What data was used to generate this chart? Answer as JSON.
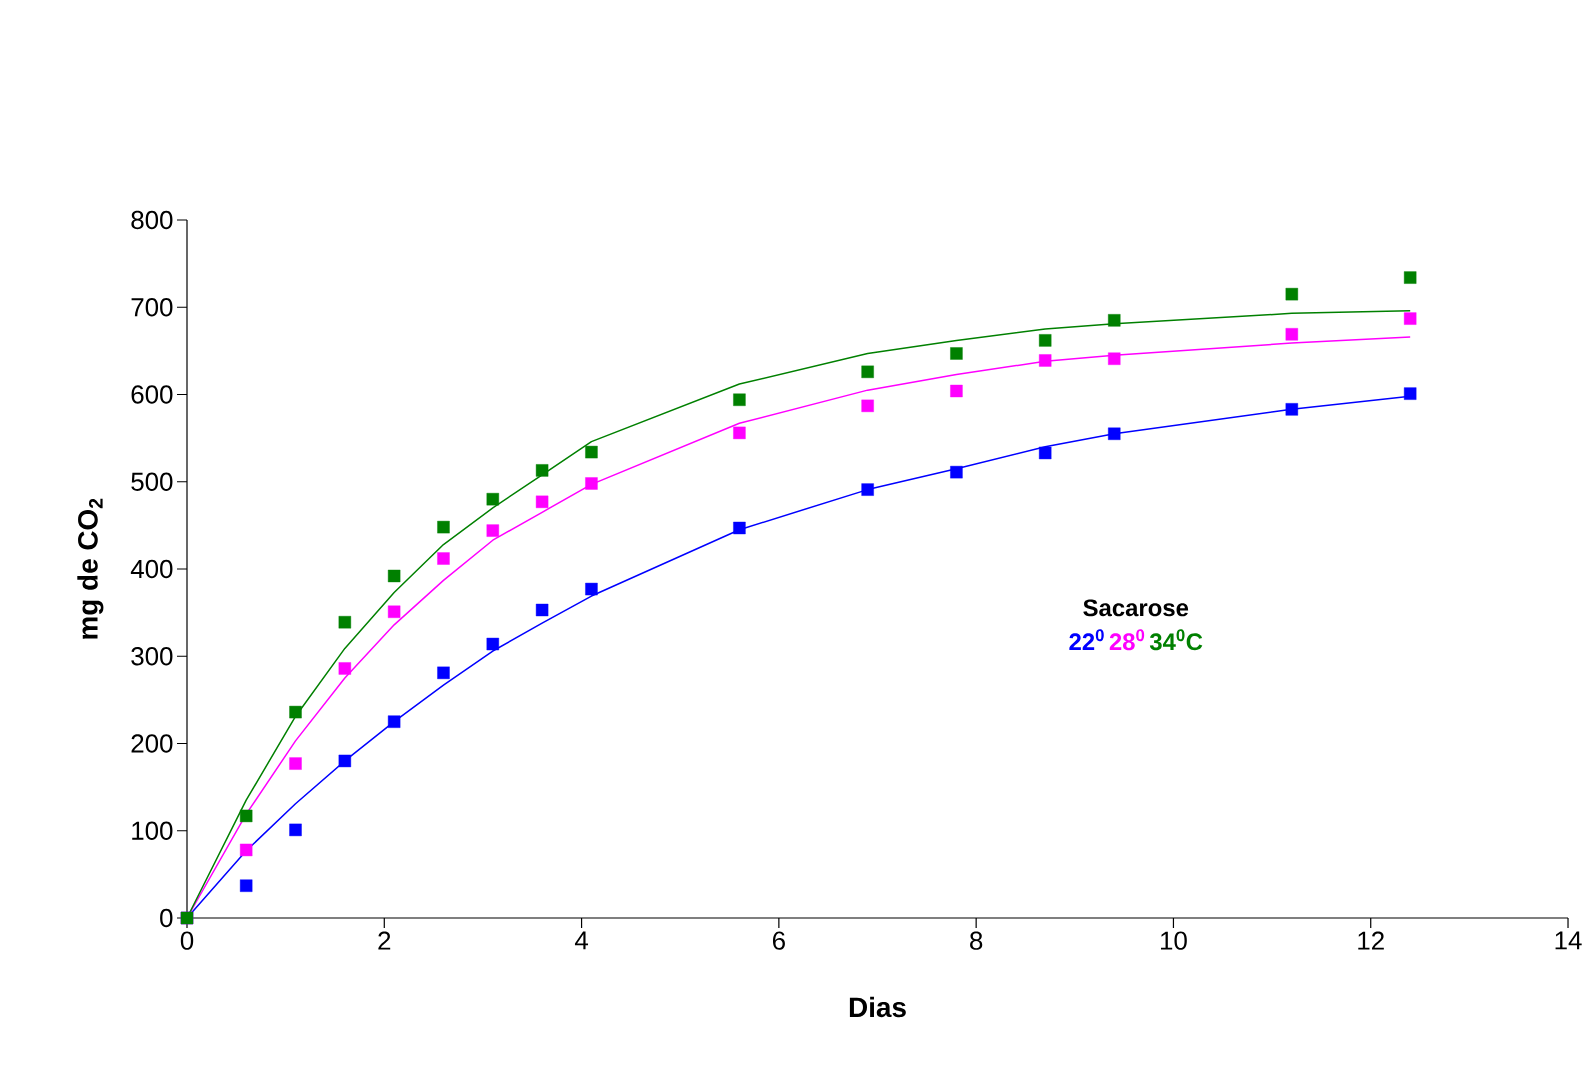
{
  "chart_data": {
    "type": "scatter",
    "xlabel": "Dias",
    "ylabel": "mg de CO$_{2}$",
    "legend_title": "Sacarose",
    "legend": "right",
    "marker": "square",
    "grid": false,
    "xlim": [
      0,
      14
    ],
    "ylim": [
      0,
      800
    ],
    "xticks": [
      0,
      2,
      4,
      6,
      8,
      10,
      12,
      14
    ],
    "yticks": [
      0,
      100,
      200,
      300,
      400,
      500,
      600,
      700,
      800
    ],
    "x": [
      0,
      0.6,
      1.1,
      1.6,
      2.1,
      2.6,
      3.1,
      3.6,
      4.1,
      5.6,
      6.9,
      7.8,
      8.7,
      9.4,
      11.2,
      12.4
    ],
    "series": [
      {
        "name": "22$^{0}$",
        "color": "#0000ff",
        "values": [
          0,
          37,
          101,
          180,
          225,
          281,
          314,
          353,
          377,
          447,
          491,
          511,
          533,
          555,
          583,
          601
        ]
      },
      {
        "name": "28$^{0}$",
        "color": "#ff00ff",
        "values": [
          0,
          78,
          177,
          286,
          351,
          412,
          444,
          477,
          498,
          556,
          587,
          604,
          639,
          641,
          669,
          687
        ]
      },
      {
        "name": "34$^{0}$C",
        "color": "#008000",
        "values": [
          0,
          117,
          236,
          339,
          392,
          448,
          480,
          513,
          534,
          594,
          626,
          647,
          662,
          685,
          715,
          734
        ]
      },
      {
        "color": "#0000ff",
        "type": "line",
        "marker": "none",
        "values": [
          0,
          77,
          131,
          180,
          225,
          267,
          306,
          338,
          369,
          445,
          491,
          515,
          540,
          555,
          583,
          598
        ]
      },
      {
        "color": "#ff00ff",
        "type": "line",
        "marker": "none",
        "values": [
          0,
          119,
          203,
          275,
          336,
          387,
          433,
          465,
          497,
          567,
          605,
          623,
          638,
          645,
          659,
          666
        ]
      },
      {
        "color": "#008000",
        "type": "line",
        "marker": "none",
        "values": [
          0,
          135,
          231,
          309,
          373,
          428,
          470,
          508,
          546,
          612,
          647,
          662,
          675,
          681,
          693,
          696
        ]
      }
    ]
  }
}
